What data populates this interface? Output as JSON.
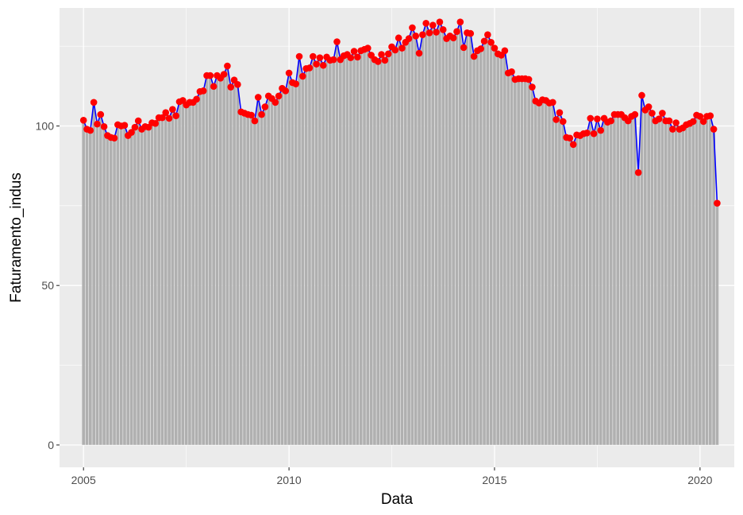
{
  "chart_data": {
    "type": "bar",
    "overlay": [
      "line",
      "scatter"
    ],
    "title": "",
    "xlabel": "Data",
    "ylabel": "Faturamento_indus",
    "x_start": "2005-01",
    "x_end": "2020-04",
    "x_frequency": "monthly",
    "xlim": [
      "2004-06",
      "2020-11"
    ],
    "ylim": [
      -7,
      137
    ],
    "x_ticks": [
      "2005",
      "2010",
      "2015",
      "2020"
    ],
    "y_ticks": [
      "0",
      "50",
      "100"
    ],
    "grid": true,
    "legend": "none",
    "colors": {
      "panel_background": "#ebebeb",
      "grid": "#ffffff",
      "bars": "#b0b0b0",
      "line": "#0000ff",
      "points": "#ff0000"
    },
    "series": [
      {
        "values": [
          101.8,
          99.0,
          98.6,
          107.4,
          100.6,
          103.6,
          99.8,
          97.0,
          96.4,
          96.2,
          100.4,
          100.0,
          100.2,
          97.0,
          98.0,
          99.6,
          101.6,
          99.0,
          99.8,
          99.6,
          101.0,
          100.8,
          102.6,
          102.6,
          104.2,
          102.4,
          105.2,
          103.2,
          107.6,
          108.0,
          106.6,
          107.4,
          107.4,
          108.4,
          110.8,
          111.0,
          115.8,
          115.8,
          112.4,
          115.8,
          115.0,
          116.2,
          118.8,
          112.2,
          114.4,
          113.0,
          104.4,
          104.0,
          103.6,
          103.4,
          101.6,
          109.0,
          103.6,
          106.0,
          109.4,
          108.6,
          107.4,
          109.4,
          111.8,
          111.0,
          116.6,
          113.6,
          113.2,
          121.8,
          115.6,
          118.0,
          118.2,
          121.8,
          119.4,
          121.4,
          119.0,
          121.6,
          120.6,
          120.8,
          126.4,
          120.8,
          122.0,
          122.4,
          121.4,
          123.4,
          121.6,
          123.6,
          124.0,
          124.4,
          122.2,
          120.8,
          120.2,
          122.4,
          120.6,
          122.6,
          124.8,
          123.8,
          127.6,
          124.4,
          126.2,
          127.4,
          130.8,
          128.2,
          122.8,
          128.6,
          132.2,
          129.2,
          131.6,
          129.4,
          132.6,
          130.2,
          127.4,
          128.2,
          127.6,
          129.6,
          132.6,
          124.6,
          129.2,
          129.0,
          121.8,
          123.6,
          124.2,
          126.6,
          128.6,
          126.2,
          124.4,
          122.6,
          122.2,
          123.6,
          116.6,
          117.0,
          114.6,
          114.8,
          114.8,
          114.8,
          114.6,
          112.2,
          107.8,
          107.2,
          108.2,
          108.0,
          107.2,
          107.4,
          102.0,
          104.2,
          101.4,
          96.4,
          96.2,
          94.2,
          97.2,
          97.0,
          97.6,
          97.8,
          102.4,
          97.6,
          102.2,
          98.6,
          102.4,
          101.2,
          101.6,
          103.6,
          103.6,
          103.6,
          102.6,
          101.6,
          103.0,
          103.6,
          85.4,
          109.6,
          105.0,
          106.0,
          104.0,
          101.6,
          102.2,
          104.0,
          101.6,
          101.6,
          99.0,
          101.0,
          99.0,
          99.4,
          100.4,
          100.8,
          101.4,
          103.4,
          103.0,
          101.4,
          103.0,
          103.2,
          99.0,
          75.8
        ]
      }
    ]
  }
}
